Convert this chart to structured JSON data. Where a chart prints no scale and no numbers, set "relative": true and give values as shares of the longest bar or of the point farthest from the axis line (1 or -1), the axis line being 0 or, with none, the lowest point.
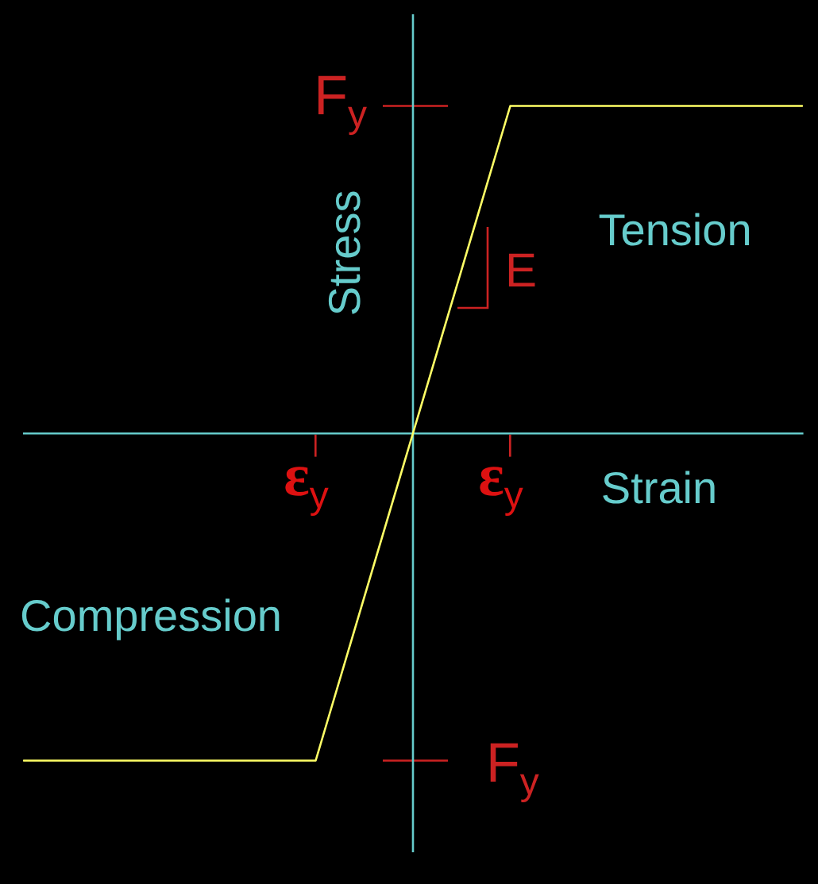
{
  "chart_data": {
    "type": "line",
    "relative": true,
    "xlabel": "Strain",
    "ylabel": "Stress",
    "categories": [
      null,
      null,
      null,
      "ε$_{y}$",
      null,
      "ε$_{y}$",
      null,
      null,
      null
    ],
    "series": [
      {
        "color": "#ffff66",
        "values": [
          -1,
          -1,
          -1,
          -1,
          0,
          1,
          1,
          1,
          1
        ]
      }
    ],
    "ref_lines": [
      {
        "axis": "y",
        "value": 1,
        "label": "F$_{y}$",
        "color": "#cc2222"
      },
      {
        "axis": "y",
        "value": -1,
        "label": "F$_{y}$",
        "color": "#cc2222"
      }
    ],
    "annotations": [
      "Tension",
      "Compression",
      "E"
    ]
  }
}
